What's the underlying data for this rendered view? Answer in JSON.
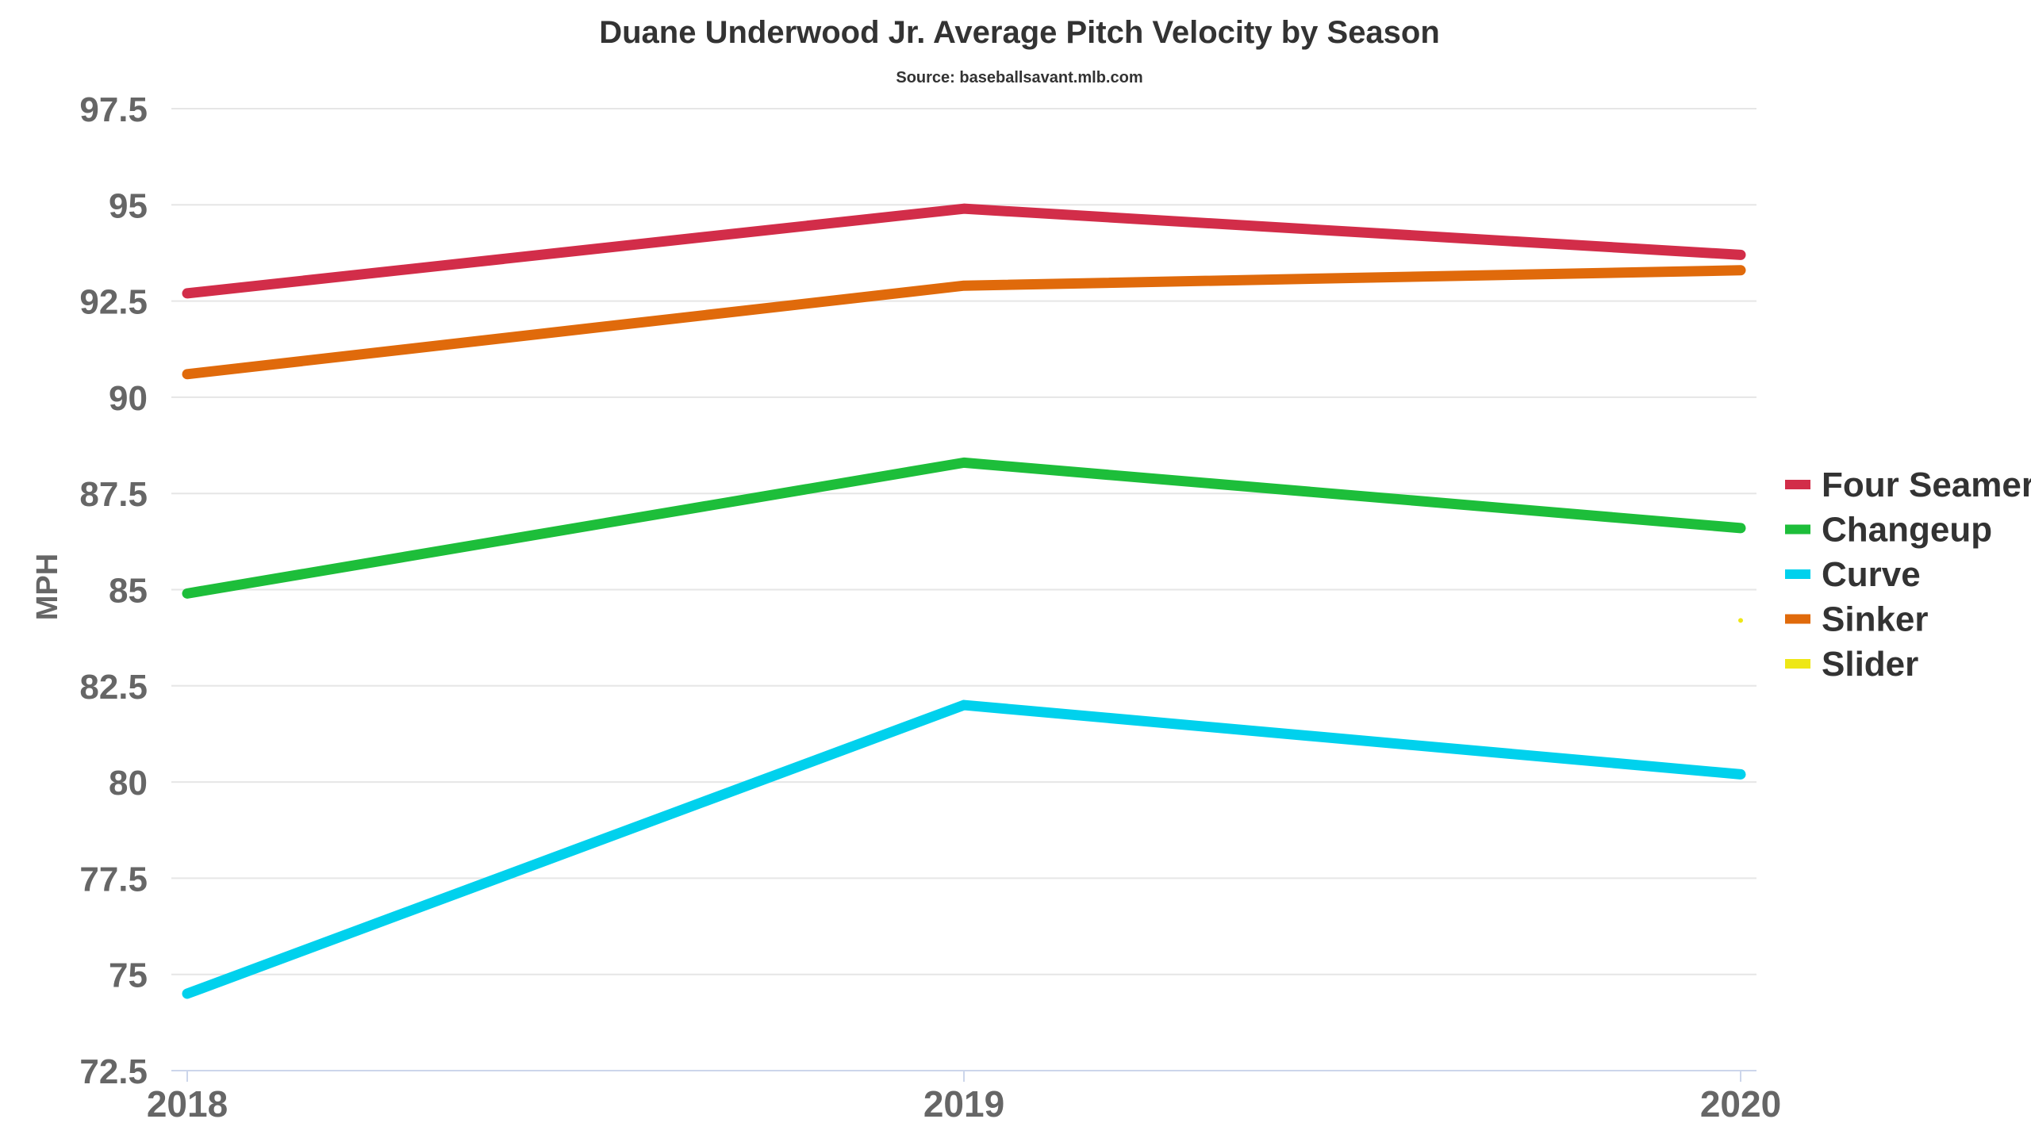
{
  "chart_data": {
    "type": "line",
    "title": "Duane Underwood Jr. Average Pitch Velocity by Season",
    "subtitle": "Source: baseballsavant.mlb.com",
    "xlabel": "",
    "ylabel": "MPH",
    "categories": [
      "2018",
      "2019",
      "2020"
    ],
    "ylim": [
      72.5,
      97.5
    ],
    "yticks": [
      "72.5",
      "75",
      "77.5",
      "80",
      "82.5",
      "85",
      "87.5",
      "90",
      "92.5",
      "95",
      "97.5"
    ],
    "grid": true,
    "legend_position": "right",
    "series": [
      {
        "name": "Four Seamer",
        "color": "#d22d49",
        "values": [
          92.7,
          94.9,
          93.7
        ]
      },
      {
        "name": "Changeup",
        "color": "#1dbe3a",
        "values": [
          84.9,
          88.3,
          86.6
        ]
      },
      {
        "name": "Curve",
        "color": "#00d1ed",
        "values": [
          74.5,
          82.0,
          80.2
        ]
      },
      {
        "name": "Sinker",
        "color": "#e06a0b",
        "values": [
          90.6,
          92.9,
          93.3
        ]
      },
      {
        "name": "Slider",
        "color": "#eee716",
        "values": [
          null,
          null,
          84.2
        ]
      }
    ]
  }
}
